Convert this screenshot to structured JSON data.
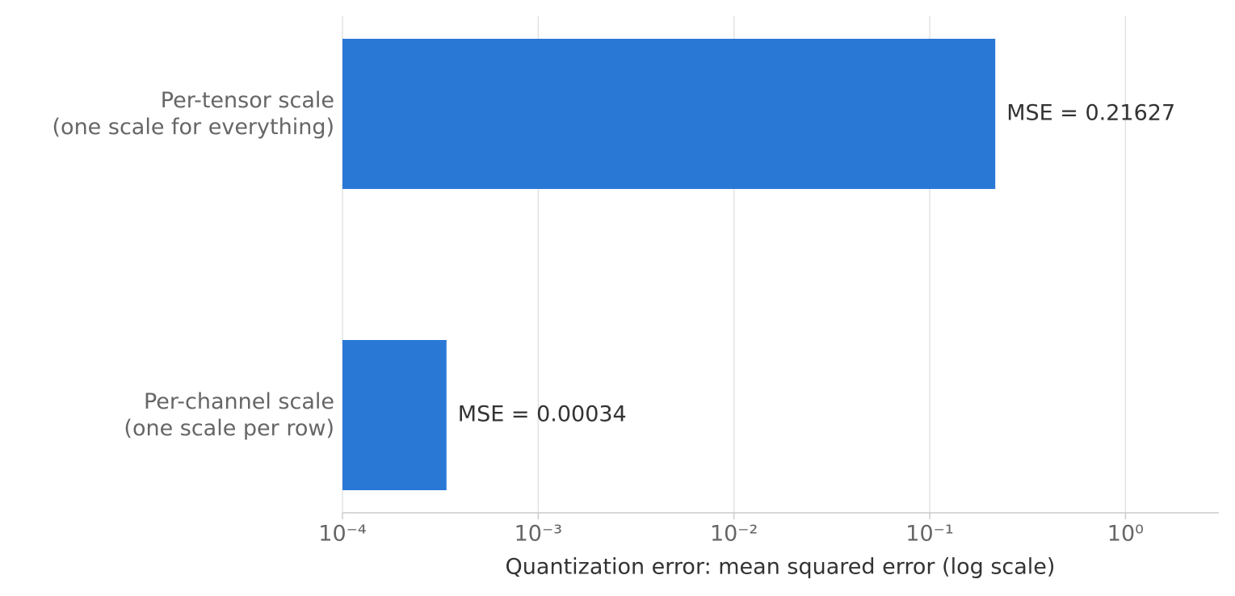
{
  "chart_data": {
    "type": "barh",
    "categories": [
      "Per-tensor scale\n(one scale for everything)",
      "Per-channel scale\n(one scale per row)"
    ],
    "values": [
      0.21627,
      0.00034
    ],
    "value_labels": [
      "MSE = 0.21627",
      "MSE = 0.00034"
    ],
    "color": "#2a78d6",
    "xlabel": "Quantization error: mean squared error (log scale)",
    "xscale": "log",
    "xlim": [
      0.0001,
      3
    ],
    "xticks": [
      {
        "value": 0.0001,
        "label": "10⁻⁴"
      },
      {
        "value": 0.001,
        "label": "10⁻³"
      },
      {
        "value": 0.01,
        "label": "10⁻²"
      },
      {
        "value": 0.1,
        "label": "10⁻¹"
      },
      {
        "value": 1,
        "label": "10⁰"
      }
    ],
    "grid": true
  }
}
